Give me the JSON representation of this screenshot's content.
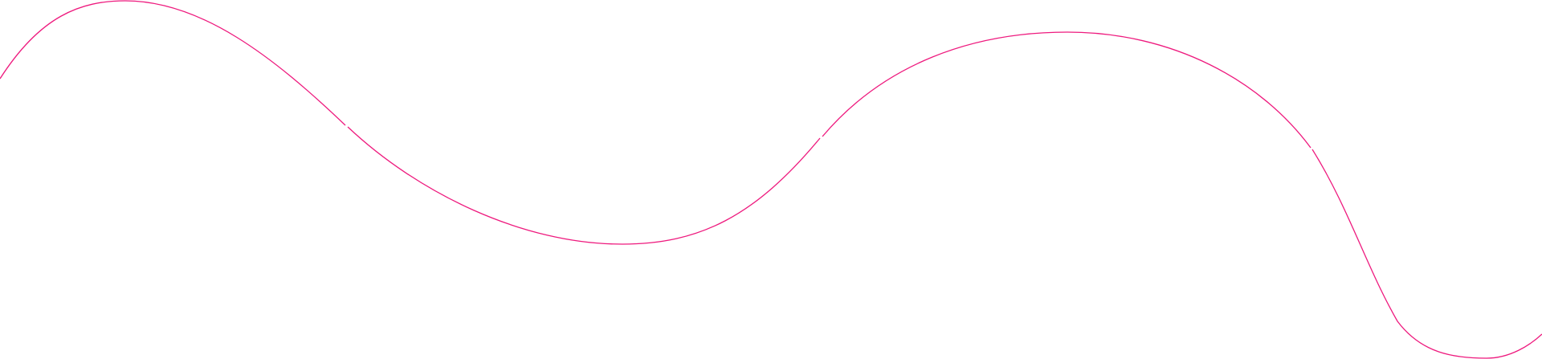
{
  "decoration": {
    "type": "wavy-line",
    "stroke_color": "#ee1a7e",
    "background": "#ffffff",
    "segment_count": 4
  }
}
